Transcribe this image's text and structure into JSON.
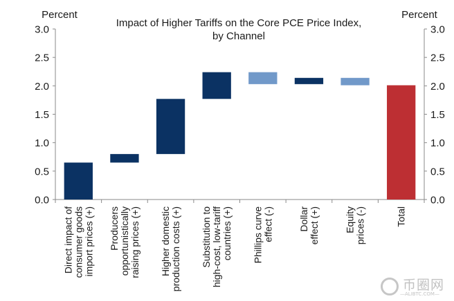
{
  "chart_data": {
    "type": "bar",
    "subtype": "waterfall",
    "title": "Impact of Higher Tariffs on the Core PCE Price Index, by Channel",
    "title_lines": [
      "Impact of Higher Tariffs on the Core PCE Price Index,",
      "by Channel"
    ],
    "ylabel_left": "Percent",
    "ylabel_right": "Percent",
    "xlabel": "",
    "ylim": [
      0,
      3.0
    ],
    "yticks": [
      0.0,
      0.5,
      1.0,
      1.5,
      2.0,
      2.5,
      3.0
    ],
    "ytick_labels": [
      "0.0",
      "0.5",
      "1.0",
      "1.5",
      "2.0",
      "2.5",
      "3.0"
    ],
    "grid": false,
    "legend": "none",
    "categories": [
      [
        "Direct impact of",
        "consumer goods",
        "import prices (+)"
      ],
      [
        "Producers",
        "opportunistically",
        "raising prices (+)"
      ],
      [
        "Higher domestic",
        "production costs (+)"
      ],
      [
        "Substitution to",
        "high-cost, low-tariff",
        "countries (+)"
      ],
      [
        "Phillips curve",
        "effect (-)"
      ],
      [
        "Dollar",
        "effect (+)"
      ],
      [
        "Equity",
        "prices (-)"
      ],
      [
        "Total"
      ]
    ],
    "bars": [
      {
        "name": "Direct impact of consumer goods import prices (+)",
        "start": 0.0,
        "end": 0.65,
        "value": 0.65,
        "kind": "increase"
      },
      {
        "name": "Producers opportunistically raising prices (+)",
        "start": 0.65,
        "end": 0.8,
        "value": 0.15,
        "kind": "increase"
      },
      {
        "name": "Higher domestic production costs (+)",
        "start": 0.8,
        "end": 1.77,
        "value": 0.97,
        "kind": "increase"
      },
      {
        "name": "Substitution to high-cost, low-tariff countries (+)",
        "start": 1.77,
        "end": 2.24,
        "value": 0.47,
        "kind": "increase"
      },
      {
        "name": "Phillips curve effect (-)",
        "start": 2.24,
        "end": 2.03,
        "value": -0.21,
        "kind": "decrease"
      },
      {
        "name": "Dollar effect (+)",
        "start": 2.03,
        "end": 2.14,
        "value": 0.11,
        "kind": "increase"
      },
      {
        "name": "Equity prices (-)",
        "start": 2.14,
        "end": 2.01,
        "value": -0.13,
        "kind": "decrease"
      },
      {
        "name": "Total",
        "start": 0.0,
        "end": 2.01,
        "value": 2.01,
        "kind": "total"
      }
    ],
    "colors": {
      "increase": "#0b3263",
      "decrease": "#7199c9",
      "total": "#bd2f33",
      "axis": "#8a8a8a"
    }
  },
  "watermark": {
    "text": "币圈网",
    "subtext": "—ALIBTC.COM—"
  }
}
